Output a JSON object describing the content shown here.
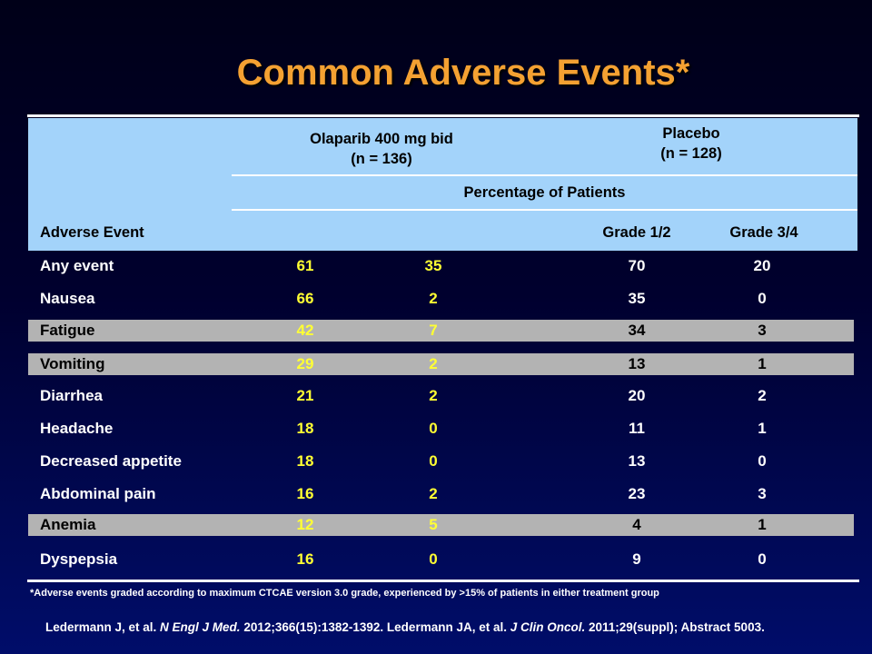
{
  "title": "Common Adverse Events*",
  "header": {
    "olaparib_line1": "Olaparib 400 mg bid",
    "olaparib_line2": "(n = 136)",
    "placebo_line1": "Placebo",
    "placebo_line2": "(n = 128)",
    "percentage": "Percentage of Patients",
    "adverse_event": "Adverse Event",
    "grade12": "Grade 1/2",
    "grade34": "Grade 3/4"
  },
  "rows": [
    {
      "name": "Any event",
      "ola_g12": "61",
      "ola_g34": "35",
      "pla_g12": "70",
      "pla_g34": "20"
    },
    {
      "name": "Nausea",
      "ola_g12": "66",
      "ola_g34": "2",
      "pla_g12": "35",
      "pla_g34": "0"
    },
    {
      "name": "Fatigue",
      "ola_g12": "42",
      "ola_g34": "7",
      "pla_g12": "34",
      "pla_g34": "3"
    },
    {
      "name": "Vomiting",
      "ola_g12": "29",
      "ola_g34": "2",
      "pla_g12": "13",
      "pla_g34": "1"
    },
    {
      "name": "Diarrhea",
      "ola_g12": "21",
      "ola_g34": "2",
      "pla_g12": "20",
      "pla_g34": "2"
    },
    {
      "name": "Headache",
      "ola_g12": "18",
      "ola_g34": "0",
      "pla_g12": "11",
      "pla_g34": "1"
    },
    {
      "name": "Decreased appetite",
      "ola_g12": "18",
      "ola_g34": "0",
      "pla_g12": "13",
      "pla_g34": "0"
    },
    {
      "name": "Abdominal pain",
      "ola_g12": "16",
      "ola_g34": "2",
      "pla_g12": "23",
      "pla_g34": "3"
    },
    {
      "name": "Anemia",
      "ola_g12": "12",
      "ola_g34": "5",
      "pla_g12": "4",
      "pla_g34": "1"
    },
    {
      "name": "Dyspepsia",
      "ola_g12": "16",
      "ola_g34": "0",
      "pla_g12": "9",
      "pla_g34": "0"
    }
  ],
  "footnote": "*Adverse events graded according to maximum CTCAE version 3.0 grade, experienced by >15% of patients in either treatment group",
  "reference": {
    "part1": "Ledermann J, et al. ",
    "journal1": "N Engl J Med.",
    "part2": " 2012;366(15):1382-1392. Ledermann JA, et al. ",
    "journal2": "J Clin Oncol.",
    "part3": " 2011;29(suppl); Abstract 5003."
  },
  "colors": {
    "title": "#f4a132",
    "header_bg": "#a3d3fa",
    "olaparib_values": "#ffff33",
    "shaded_row": "#b3b3b3"
  }
}
